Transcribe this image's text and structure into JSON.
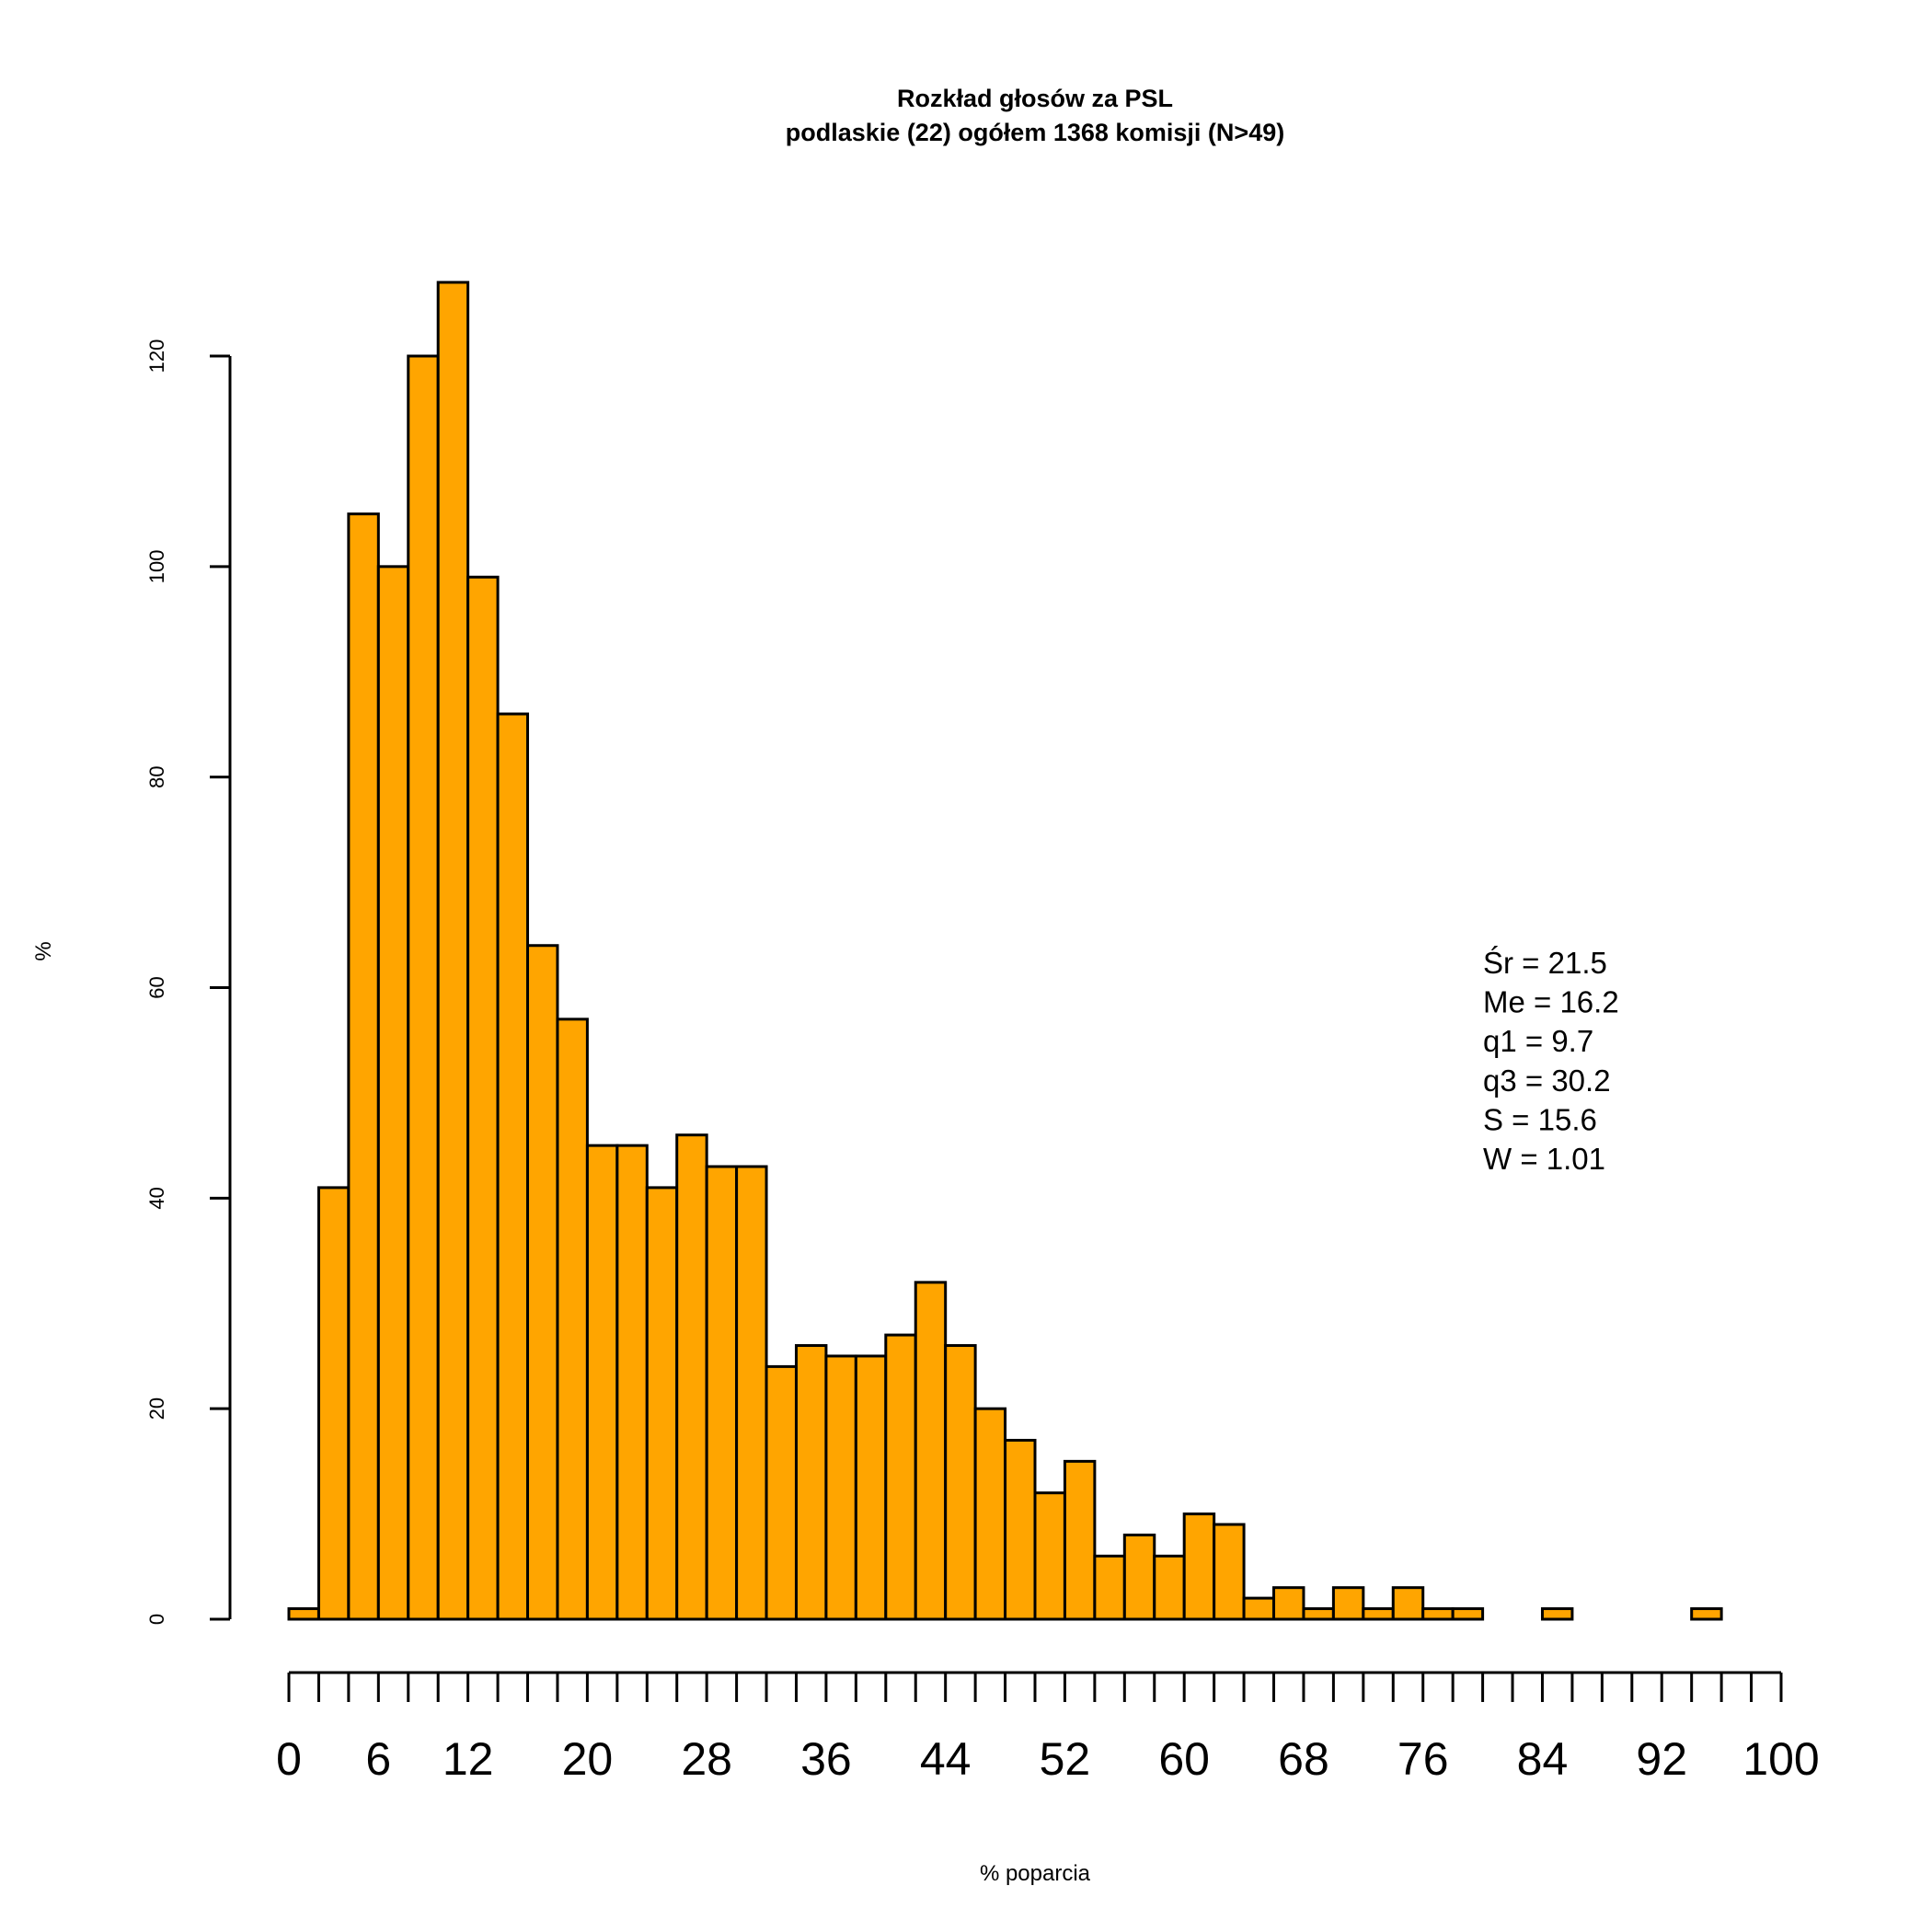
{
  "chart_data": {
    "type": "bar",
    "title": "Rozkład głosów za PSL",
    "subtitle": "podlaskie (22) ogółem 1368 komisji (N>49)",
    "xlabel": "% poparcia",
    "ylabel": "%",
    "bin_width": 2,
    "x_range": [
      0,
      100
    ],
    "ylim": [
      0,
      130
    ],
    "y_ticks": [
      0,
      20,
      40,
      60,
      80,
      100,
      120
    ],
    "x_ticks": [
      0,
      6,
      12,
      20,
      28,
      36,
      44,
      52,
      60,
      68,
      76,
      84,
      92,
      100
    ],
    "x_minor_tick_step": 2,
    "bin_starts": [
      0,
      2,
      4,
      6,
      8,
      10,
      12,
      14,
      16,
      18,
      20,
      22,
      24,
      26,
      28,
      30,
      32,
      34,
      36,
      38,
      40,
      42,
      44,
      46,
      48,
      50,
      52,
      54,
      56,
      58,
      60,
      62,
      64,
      66,
      68,
      70,
      72,
      74,
      76,
      78,
      80,
      82,
      84,
      86,
      88,
      90,
      92,
      94,
      96,
      98
    ],
    "values": [
      1,
      41,
      105,
      100,
      120,
      127,
      99,
      86,
      64,
      57,
      45,
      45,
      41,
      46,
      43,
      43,
      24,
      26,
      25,
      25,
      27,
      32,
      26,
      20,
      17,
      12,
      15,
      6,
      8,
      6,
      10,
      9,
      2,
      3,
      1,
      3,
      1,
      3,
      1,
      1,
      0,
      0,
      1,
      0,
      0,
      0,
      0,
      1,
      0,
      0
    ],
    "annotations": [
      "Śr = 21.5",
      "Me = 16.2",
      "q1 = 9.7",
      "q3 = 30.2",
      "S = 15.6",
      "W = 1.01"
    ],
    "grid": false,
    "bar_color": "#FFA500",
    "bar_stroke": "#000000"
  }
}
